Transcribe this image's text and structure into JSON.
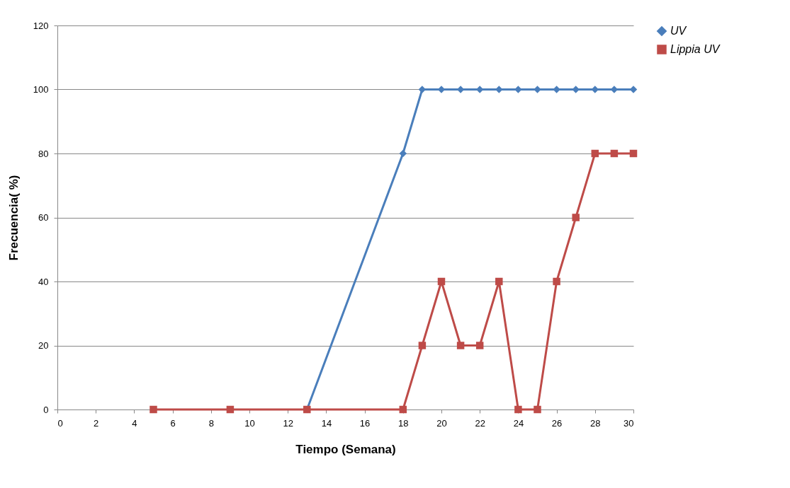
{
  "chart_data": {
    "type": "line",
    "xlabel": "Tiempo (Semana)",
    "ylabel": "Frecuencia( %)",
    "xlim": [
      0,
      30
    ],
    "xticks": [
      0,
      2,
      4,
      6,
      8,
      10,
      12,
      14,
      16,
      18,
      20,
      22,
      24,
      26,
      28,
      30
    ],
    "ylim": [
      0,
      120
    ],
    "yticks": [
      0,
      20,
      40,
      60,
      80,
      100,
      120
    ],
    "grid": "y",
    "legend": "right",
    "series": [
      {
        "name": "UV",
        "color": "#4a7ebb",
        "marker": "diamond",
        "x": [
          13,
          18,
          19,
          20,
          21,
          22,
          23,
          24,
          25,
          26,
          27,
          28,
          29,
          30
        ],
        "values": [
          0,
          80,
          100,
          100,
          100,
          100,
          100,
          100,
          100,
          100,
          100,
          100,
          100,
          100
        ]
      },
      {
        "name": "Lippia UV",
        "color": "#be4b48",
        "marker": "square",
        "x": [
          5,
          9,
          13,
          18,
          19,
          20,
          21,
          22,
          23,
          24,
          25,
          26,
          27,
          28,
          29,
          30
        ],
        "values": [
          0,
          0,
          0,
          0,
          20,
          40,
          20,
          20,
          40,
          0,
          0,
          40,
          60,
          80,
          80,
          80
        ]
      }
    ]
  }
}
